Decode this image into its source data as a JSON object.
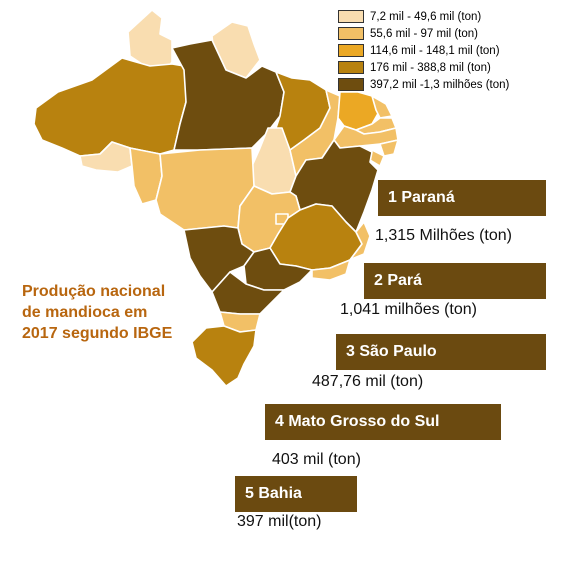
{
  "title_lines": [
    "Produção nacional",
    "de mandioca em",
    "2017 segundo IBGE"
  ],
  "legend": [
    {
      "label": "7,2 mil - 49,6 mil (ton)",
      "color": "#f9ddb0"
    },
    {
      "label": "55,6 mil - 97 mil (ton)",
      "color": "#f2c066"
    },
    {
      "label": "114,6 mil - 148,1 mil (ton)",
      "color": "#eba824"
    },
    {
      "label": "176 mil - 388,8 mil (ton)",
      "color": "#b8820f"
    },
    {
      "label": "397,2 mil -1,3 milhões (ton)",
      "color": "#6e4d0f"
    }
  ],
  "ranking": [
    {
      "label": "1 Paraná",
      "value": "1,315 Milhões (ton)"
    },
    {
      "label": "2 Pará",
      "value": "1,041 milhões (ton)"
    },
    {
      "label": "3 São Paulo",
      "value": "487,76 mil (ton)"
    },
    {
      "label": "4 Mato Grosso do Sul",
      "value": "403 mil (ton)"
    },
    {
      "label": "5 Bahia",
      "value": "397 mil(ton)"
    }
  ],
  "states": [
    {
      "id": "RR",
      "cls": 0
    },
    {
      "id": "AP",
      "cls": 0
    },
    {
      "id": "AM",
      "cls": 3
    },
    {
      "id": "AC",
      "cls": 0
    },
    {
      "id": "RO",
      "cls": 1
    },
    {
      "id": "PA",
      "cls": 4
    },
    {
      "id": "MA",
      "cls": 3
    },
    {
      "id": "TO",
      "cls": 0
    },
    {
      "id": "MT",
      "cls": 1
    },
    {
      "id": "PI",
      "cls": 1
    },
    {
      "id": "CE",
      "cls": 2
    },
    {
      "id": "RN",
      "cls": 1
    },
    {
      "id": "PB",
      "cls": 1
    },
    {
      "id": "PE",
      "cls": 1
    },
    {
      "id": "AL",
      "cls": 1
    },
    {
      "id": "SE",
      "cls": 1
    },
    {
      "id": "BA",
      "cls": 4
    },
    {
      "id": "GO",
      "cls": 1
    },
    {
      "id": "DF",
      "cls": 1
    },
    {
      "id": "MG",
      "cls": 3
    },
    {
      "id": "ES",
      "cls": 1
    },
    {
      "id": "MS",
      "cls": 4
    },
    {
      "id": "SP",
      "cls": 4
    },
    {
      "id": "RJ",
      "cls": 1
    },
    {
      "id": "PR",
      "cls": 4
    },
    {
      "id": "SC",
      "cls": 1
    },
    {
      "id": "RS",
      "cls": 3
    }
  ]
}
